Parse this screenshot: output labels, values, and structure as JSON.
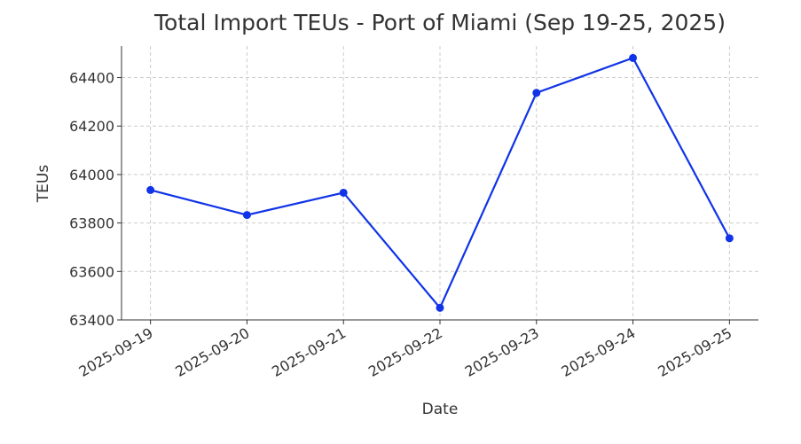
{
  "chart_data": {
    "type": "line",
    "title": "Total Import TEUs - Port of Miami (Sep 19-25, 2025)",
    "x_label": "Date",
    "y_label": "TEUs",
    "categories": [
      "2025-09-19",
      "2025-09-20",
      "2025-09-21",
      "2025-09-22",
      "2025-09-23",
      "2025-09-24",
      "2025-09-25"
    ],
    "series": [
      {
        "name": "TEUs",
        "color": "#1033e8",
        "values": [
          63936,
          63833,
          63925,
          63450,
          64337,
          64481,
          63737
        ]
      }
    ],
    "ylim": [
      63400,
      64530
    ],
    "yticks": [
      63400,
      63600,
      63800,
      64000,
      64200,
      64400
    ],
    "grid": true
  }
}
